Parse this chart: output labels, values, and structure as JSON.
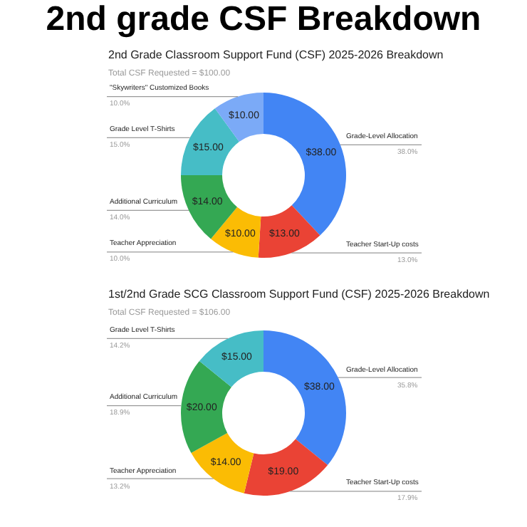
{
  "chart_data": [
    {
      "type": "donut",
      "title": "2nd grade CSF Breakdown",
      "subtitle": "2nd Grade Classroom Support Fund (CSF) 2025-2026 Breakdown",
      "categories": [
        "Grade-Level Allocation",
        "Teacher Start-Up costs",
        "Teacher Appreciation",
        "Additional Curriculum",
        "Grade Level T-Shirts",
        "\"Skywriters\" Customized Books"
      ],
      "values": [
        38,
        13,
        10,
        14,
        15,
        10
      ],
      "value_labels": [
        "$38.00",
        "$13.00",
        "$10.00",
        "$14.00",
        "$15.00",
        "$10.00"
      ],
      "colors": [
        "#4285f4",
        "#ea4335",
        "#fbbc04",
        "#34a853",
        "#46bdc6",
        "#7baaf7"
      ],
      "annotations": [
        "Total CSF Requested = $100.00",
        "38.0%",
        "13.0%",
        "10.0%",
        "14.0%",
        "15.0%",
        "10.0%"
      ],
      "legend": false
    },
    {
      "type": "donut",
      "title": "1st/2nd Grade SCG Classroom Support Fund (CSF) 2025-2026 Breakdown",
      "categories": [
        "Grade-Level Allocation",
        "Teacher Start-Up costs",
        "Teacher Appreciation",
        "Additional Curriculum",
        "Grade Level T-Shirts"
      ],
      "values": [
        38,
        19,
        14,
        20,
        15
      ],
      "value_labels": [
        "$38.00",
        "$19.00",
        "$14.00",
        "$20.00",
        "$15.00"
      ],
      "colors": [
        "#4285f4",
        "#ea4335",
        "#fbbc04",
        "#34a853",
        "#46bdc6"
      ],
      "annotations": [
        "Total CSF Requested = $106.00",
        "35.8%",
        "17.9%",
        "13.2%",
        "18.9%",
        "14.2%"
      ],
      "legend": false
    }
  ]
}
